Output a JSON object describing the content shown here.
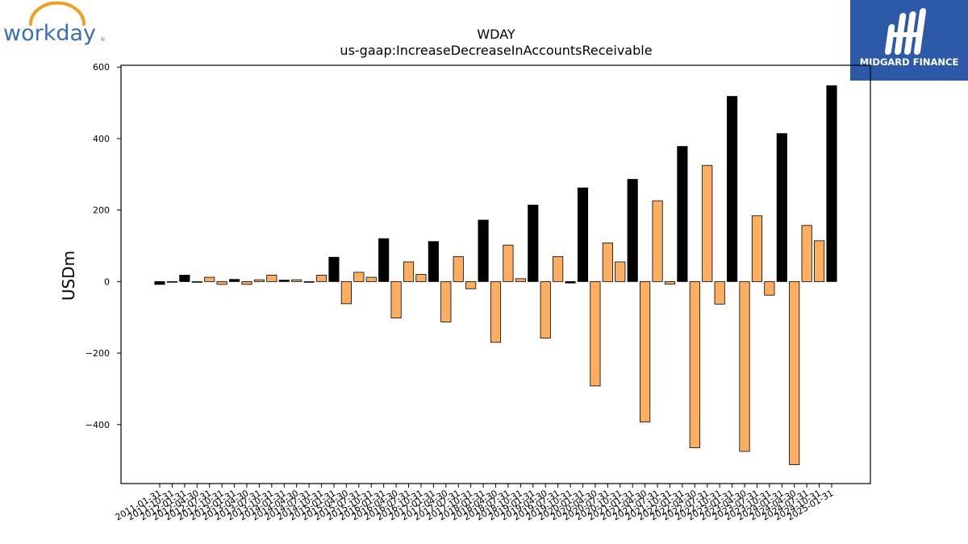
{
  "branding": {
    "left_logo_text": "workday",
    "right_logo_text": "MIDGARD FINANCE",
    "left_logo_color": "#3a6fb7",
    "left_logo_arc_color": "#f0a020",
    "right_logo_bg": "#2c5aa8"
  },
  "chart_data": {
    "type": "bar",
    "title": "WDAY",
    "subtitle": "us-gaap:IncreaseDecreaseInAccountsReceivable",
    "ylabel": "USDm",
    "xlabel": "",
    "ylim": [
      -565,
      605
    ],
    "yticks": [
      -400,
      -200,
      0,
      200,
      400,
      600
    ],
    "grid": false,
    "colors": {
      "annual": "#000000",
      "quarterly": "#fdae61"
    },
    "categories": [
      "2011-01-31",
      "2011-10-31",
      "2012-01-31",
      "2012-04-30",
      "2012-07-31",
      "2012-10-31",
      "2013-01-31",
      "2013-04-30",
      "2013-07-31",
      "2013-10-31",
      "2014-01-31",
      "2014-04-30",
      "2014-07-31",
      "2014-10-31",
      "2015-01-31",
      "2015-04-30",
      "2015-07-31",
      "2015-10-31",
      "2016-01-31",
      "2016-04-30",
      "2016-07-31",
      "2016-10-31",
      "2017-01-31",
      "2017-04-30",
      "2017-07-31",
      "2017-10-31",
      "2018-01-31",
      "2018-04-30",
      "2018-07-31",
      "2018-10-31",
      "2019-01-31",
      "2019-04-30",
      "2019-07-31",
      "2019-10-31",
      "2020-01-31",
      "2020-04-30",
      "2020-07-31",
      "2020-10-31",
      "2021-01-31",
      "2021-04-30",
      "2021-07-31",
      "2021-10-31",
      "2022-01-31",
      "2022-04-30",
      "2022-07-31",
      "2022-10-31",
      "2023-01-31",
      "2023-04-30",
      "2023-07-31",
      "2023-10-31",
      "2024-01-31",
      "2024-04-30",
      "2024-07-31",
      "2024-10-31",
      "2025-01-31"
    ],
    "values": [
      -8,
      -2,
      18,
      -2,
      12,
      -8,
      6,
      -8,
      5,
      18,
      4,
      5,
      -2,
      18,
      68,
      -62,
      26,
      12,
      120,
      -102,
      55,
      20,
      112,
      -113,
      70,
      -20,
      172,
      -170,
      102,
      8,
      214,
      -158,
      70,
      -4,
      262,
      -292,
      108,
      55,
      286,
      -393,
      226,
      -7,
      378,
      -465,
      325,
      -63,
      518,
      -475,
      184,
      -38,
      414,
      -512,
      157,
      114,
      548
    ],
    "bar_type": [
      "annual",
      "quarterly",
      "annual",
      "quarterly",
      "quarterly",
      "quarterly",
      "annual",
      "quarterly",
      "quarterly",
      "quarterly",
      "annual",
      "quarterly",
      "quarterly",
      "quarterly",
      "annual",
      "quarterly",
      "quarterly",
      "quarterly",
      "annual",
      "quarterly",
      "quarterly",
      "quarterly",
      "annual",
      "quarterly",
      "quarterly",
      "quarterly",
      "annual",
      "quarterly",
      "quarterly",
      "quarterly",
      "annual",
      "quarterly",
      "quarterly",
      "annual",
      "annual",
      "quarterly",
      "quarterly",
      "quarterly",
      "annual",
      "quarterly",
      "quarterly",
      "quarterly",
      "annual",
      "quarterly",
      "quarterly",
      "quarterly",
      "annual",
      "quarterly",
      "quarterly",
      "quarterly",
      "annual",
      "quarterly",
      "quarterly",
      "quarterly",
      "annual"
    ]
  }
}
